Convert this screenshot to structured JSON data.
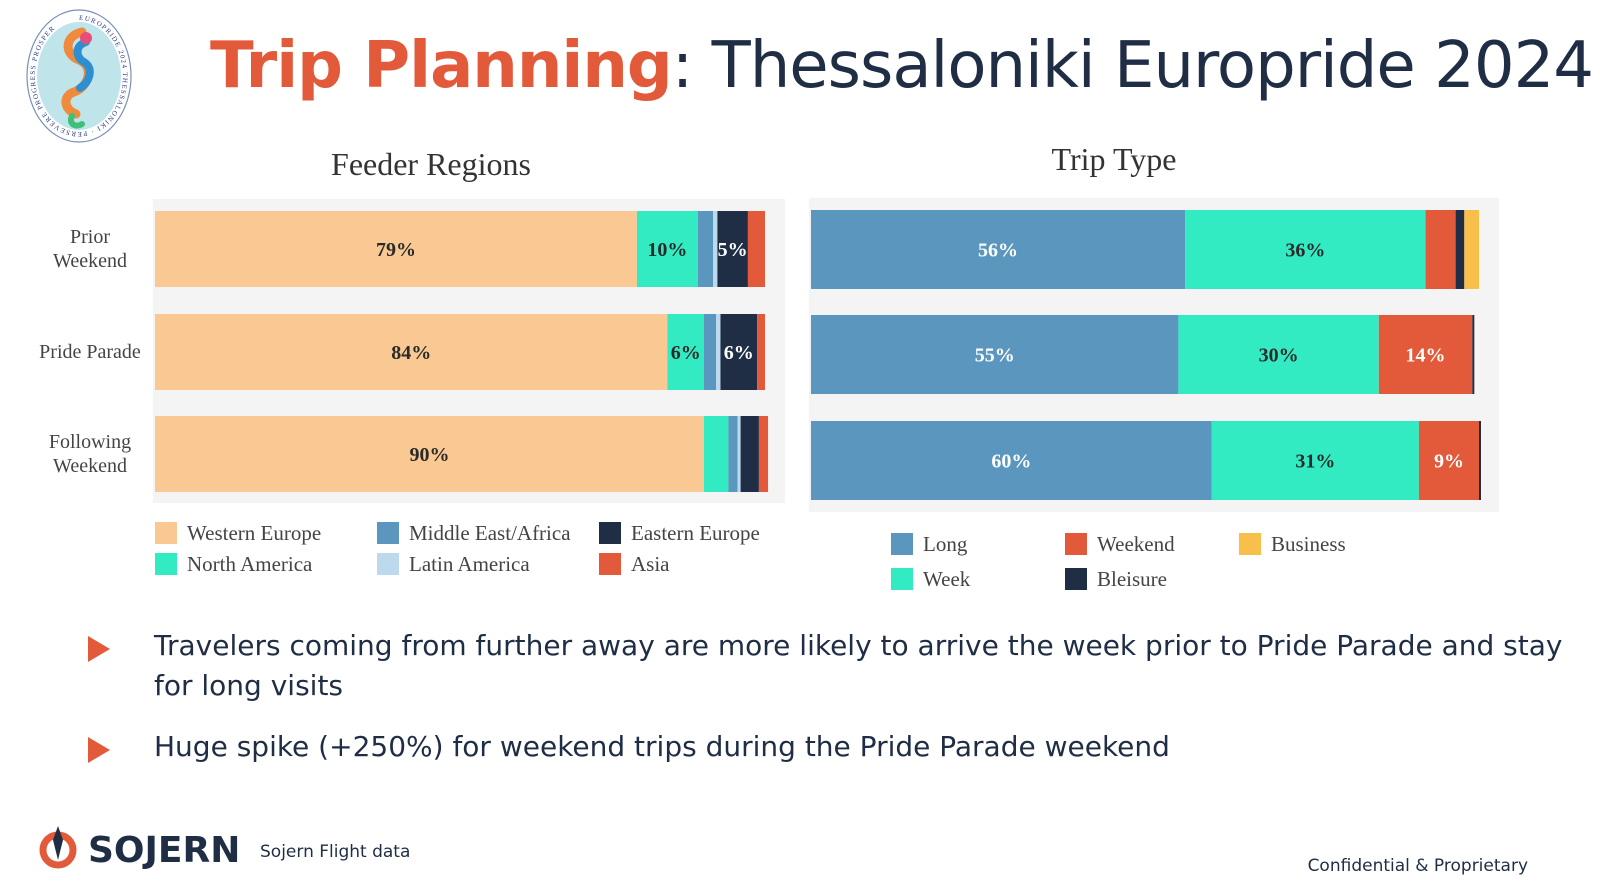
{
  "slide": {
    "title_highlight": "Trip Planning",
    "title_rest": ": Thessaloniki Europride 2024",
    "bullets": [
      "Travelers coming from further away are more likely to arrive the week prior to Pride Parade and stay for long visits",
      "Huge spike (+250%) for weekend trips during the Pride Parade weekend"
    ],
    "footnote": "Sojern Flight data",
    "confidential": "Confidential & Proprietary",
    "brand": "SOJERN",
    "logo_ring_text": "EUROPRIDE 2024 THESSALONIKI · PERSEVERE PROGRESS PROSPER"
  },
  "chart_data": [
    {
      "type": "bar",
      "orientation": "horizontal",
      "stacked": true,
      "title": "Feeder Regions",
      "categories": [
        "Prior\nWeekend",
        "Pride Parade",
        "Following\nWeekend"
      ],
      "series": [
        {
          "name": "Western Europe",
          "color": "#fac993",
          "values": [
            79,
            84,
            90
          ],
          "labels": [
            "79%",
            "84%",
            "90%"
          ]
        },
        {
          "name": "North America",
          "color": "#33ebc3",
          "values": [
            10,
            6,
            4
          ],
          "labels": [
            "10%",
            "6%",
            ""
          ]
        },
        {
          "name": "Middle East/Africa",
          "color": "#5b96bf",
          "values": [
            2.5,
            2,
            1.5
          ],
          "labels": [
            "",
            "",
            ""
          ]
        },
        {
          "name": "Latin America",
          "color": "#bcd9ee",
          "values": [
            0.7,
            0.7,
            0.5
          ],
          "labels": [
            "",
            "",
            ""
          ]
        },
        {
          "name": "Eastern Europe",
          "color": "#1f2d45",
          "values": [
            5,
            6,
            3
          ],
          "labels": [
            "5%",
            "6%",
            ""
          ]
        },
        {
          "name": "Asia",
          "color": "#e35a3a",
          "values": [
            2.8,
            1.3,
            1.5
          ],
          "labels": [
            "",
            "",
            ""
          ]
        }
      ],
      "xlim": [
        0,
        100
      ],
      "legend_placement": "bottom"
    },
    {
      "type": "bar",
      "orientation": "horizontal",
      "stacked": true,
      "title": "Trip Type",
      "categories": [
        "Prior Weekend",
        "Pride Parade",
        "Following Weekend"
      ],
      "series": [
        {
          "name": "Long",
          "color": "#5b96bf",
          "values": [
            56,
            55,
            60
          ],
          "labels": [
            "56%",
            "55%",
            "60%"
          ]
        },
        {
          "name": "Week",
          "color": "#33ebc3",
          "values": [
            36,
            30,
            31
          ],
          "labels": [
            "36%",
            "30%",
            "31%"
          ]
        },
        {
          "name": "Weekend",
          "color": "#e35a3a",
          "values": [
            4.5,
            14,
            9
          ],
          "labels": [
            "",
            "14%",
            "9%"
          ]
        },
        {
          "name": "Bleisure",
          "color": "#1f2d45",
          "values": [
            1.3,
            0.3,
            0.3
          ],
          "labels": [
            "",
            "",
            ""
          ]
        },
        {
          "name": "Business",
          "color": "#f8bf4a",
          "values": [
            2.2,
            0,
            0
          ],
          "labels": [
            "",
            "",
            ""
          ]
        }
      ],
      "xlim": [
        0,
        100
      ],
      "legend_placement": "bottom"
    }
  ]
}
